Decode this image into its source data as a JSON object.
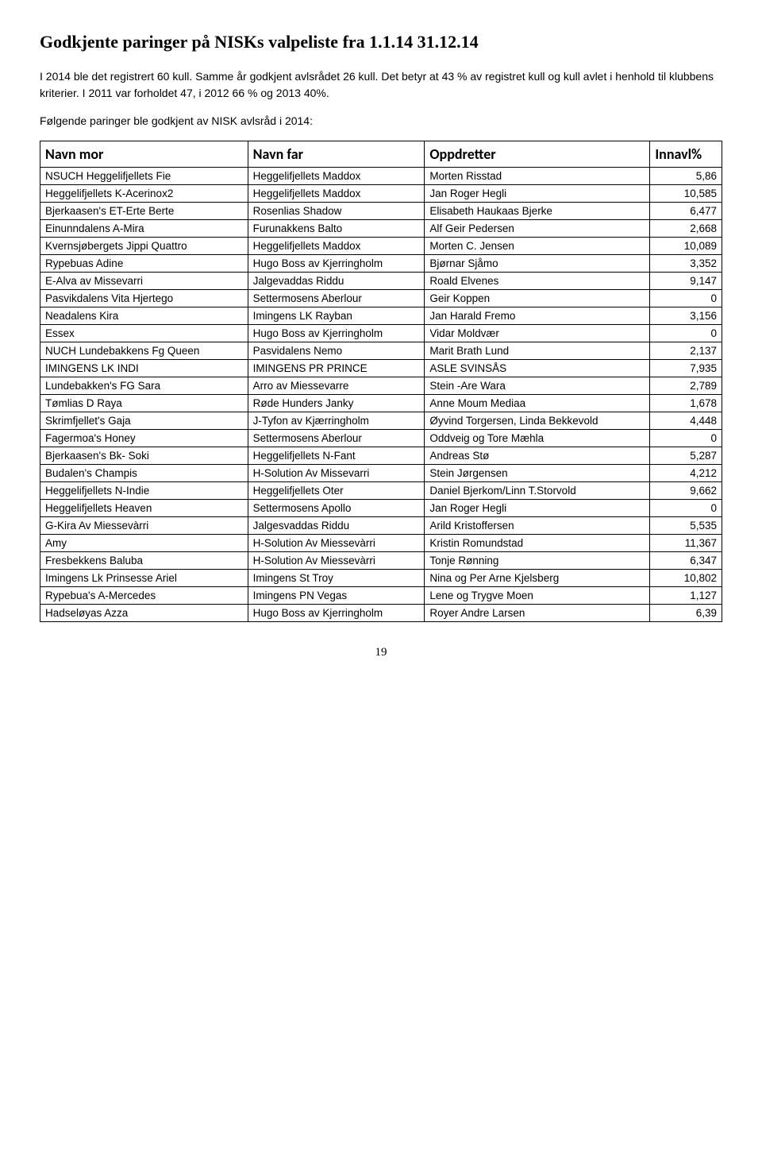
{
  "title": "Godkjente paringer på NISKs valpeliste fra 1.1.14 31.12.14",
  "intro": "I 2014 ble det registrert 60 kull. Samme år godkjent avlsrådet 26 kull. Det betyr at 43 % av registret kull og kull avlet i henhold til klubbens kriterier. I 2011 var forholdet 47, i 2012 66 % og 2013 40%.",
  "intro2": "Følgende paringer ble godkjent av NISK avlsråd i 2014:",
  "headers": [
    "Navn mor",
    "Navn far",
    "Oppdretter",
    "Innavl%"
  ],
  "rows": [
    [
      "NSUCH Heggelifjellets Fie",
      "Heggelifjellets Maddox",
      "Morten Risstad",
      "5,86"
    ],
    [
      "Heggelifjellets K-Acerinox2",
      "Heggelifjellets Maddox",
      "Jan Roger Hegli",
      "10,585"
    ],
    [
      "Bjerkaasen's ET-Erte Berte",
      "Rosenlias Shadow",
      "Elisabeth Haukaas Bjerke",
      "6,477"
    ],
    [
      "Einunndalens A-Mira",
      "Furunakkens Balto",
      "Alf Geir Pedersen",
      "2,668"
    ],
    [
      "Kvernsjøbergets Jippi Quattro",
      "Heggelifjellets Maddox",
      "Morten C. Jensen",
      "10,089"
    ],
    [
      "Rypebuas Adine",
      "Hugo Boss av Kjerringholm",
      "Bjørnar Sjåmo",
      "3,352"
    ],
    [
      "E-Alva av Missevarri",
      "Jalgevaddas Riddu",
      "Roald Elvenes",
      "9,147"
    ],
    [
      "Pasvikdalens Vita Hjertego",
      "Settermosens Aberlour",
      "Geir Koppen",
      "0"
    ],
    [
      "Neadalens Kira",
      "Imingens LK Rayban",
      "Jan Harald Fremo",
      "3,156"
    ],
    [
      "Essex",
      "Hugo Boss av Kjerringholm",
      "Vidar Moldvær",
      "0"
    ],
    [
      "NUCH Lundebakkens Fg Queen",
      "Pasvidalens Nemo",
      "Marit Brath Lund",
      "2,137"
    ],
    [
      "IMINGENS LK INDI",
      "IMINGENS PR PRINCE",
      "ASLE SVINSÅS",
      "7,935"
    ],
    [
      "Lundebakken's FG Sara",
      "Arro av Miessevarre",
      "Stein -Are Wara",
      "2,789"
    ],
    [
      "Tømlias D Raya",
      "Røde Hunders Janky",
      "Anne Moum Mediaa",
      "1,678"
    ],
    [
      "Skrimfjellet's Gaja",
      "J-Tyfon av Kjærringholm",
      "Øyvind Torgersen, Linda Bekkevold",
      "4,448"
    ],
    [
      "Fagermoa's Honey",
      "Settermosens Aberlour",
      "Oddveig og Tore Mæhla",
      "0"
    ],
    [
      "Bjerkaasen's Bk- Soki",
      "Heggelifjellets N-Fant",
      "Andreas Stø",
      "5,287"
    ],
    [
      "Budalen's Champis",
      "H-Solution Av Missevarri",
      "Stein Jørgensen",
      "4,212"
    ],
    [
      "Heggelifjellets N-Indie",
      "Heggelifjellets Oter",
      "Daniel Bjerkom/Linn T.Storvold",
      "9,662"
    ],
    [
      "Heggelifjellets Heaven",
      "Settermosens Apollo",
      "Jan Roger Hegli",
      "0"
    ],
    [
      "G-Kira Av Miessevàrri",
      "Jalgesvaddas Riddu",
      "Arild Kristoffersen",
      "5,535"
    ],
    [
      "Amy",
      " H-Solution Av Miessevàrri",
      "Kristin Romundstad",
      "11,367"
    ],
    [
      "Fresbekkens Baluba",
      " H-Solution Av Miessevàrri",
      "Tonje Rønning",
      "6,347"
    ],
    [
      "Imingens Lk Prinsesse Ariel",
      "Imingens St Troy",
      "Nina og Per Arne Kjelsberg",
      "10,802"
    ],
    [
      "Rypebua's A-Mercedes",
      " Imingens PN Vegas",
      " Lene og Trygve Moen",
      "1,127"
    ],
    [
      "Hadseløyas Azza",
      "Hugo Boss av Kjerringholm",
      "Royer Andre Larsen",
      "6,39"
    ]
  ],
  "pageNumber": "19"
}
